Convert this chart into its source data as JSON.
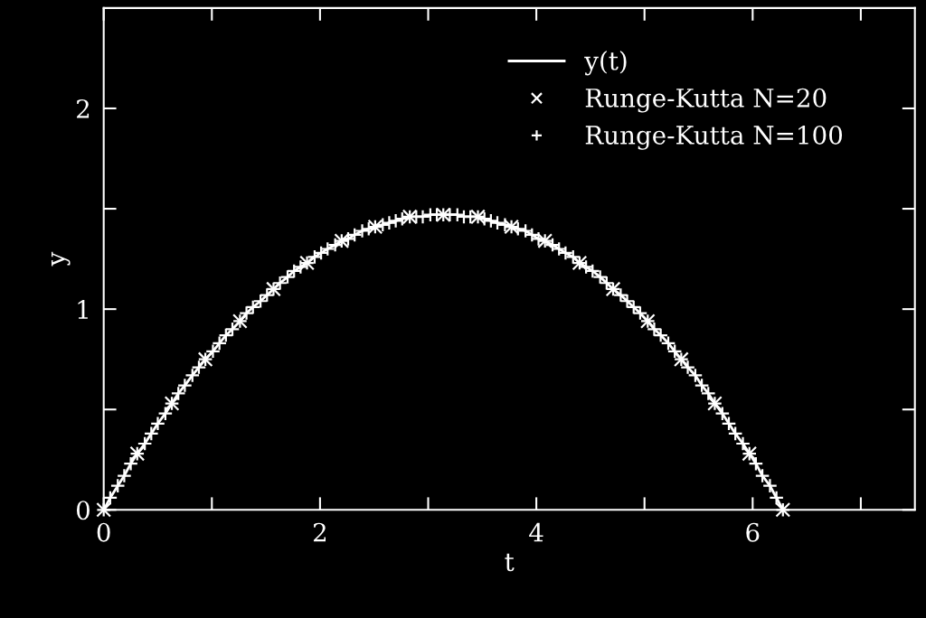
{
  "chart_data": {
    "type": "line",
    "xlabel": "t",
    "ylabel": "y",
    "xlim": [
      0,
      7.5
    ],
    "ylim": [
      0,
      2.5
    ],
    "xticks": [
      0,
      {
        "value": 1,
        "label": null
      },
      2,
      {
        "value": 3,
        "label": null
      },
      4,
      {
        "value": 5,
        "label": null
      },
      6,
      {
        "value": 7,
        "label": null
      }
    ],
    "yticks": [
      0,
      {
        "value": 0.5,
        "label": null
      },
      1,
      {
        "value": 1.5,
        "label": null
      },
      2
    ],
    "grid": false,
    "legend": "top right",
    "series": [
      {
        "name": "y(t)",
        "color": "#ffffff",
        "marker": "none",
        "line_style": "solid",
        "x": [
          0,
          0.06,
          0.13,
          0.19,
          0.25,
          0.31,
          0.38,
          0.44,
          0.5,
          0.57,
          0.63,
          0.69,
          0.75,
          0.82,
          0.88,
          0.94,
          1.01,
          1.07,
          1.13,
          1.19,
          1.26,
          1.32,
          1.38,
          1.45,
          1.51,
          1.57,
          1.63,
          1.7,
          1.76,
          1.82,
          1.88,
          1.95,
          2.01,
          2.07,
          2.14,
          2.2,
          2.26,
          2.32,
          2.39,
          2.45,
          2.51,
          2.58,
          2.64,
          2.7,
          2.76,
          2.83,
          2.89,
          2.95,
          3.02,
          3.08,
          3.14,
          3.2,
          3.27,
          3.33,
          3.39,
          3.46,
          3.52,
          3.58,
          3.64,
          3.71,
          3.77,
          3.83,
          3.9,
          3.96,
          4.02,
          4.08,
          4.15,
          4.21,
          4.27,
          4.34,
          4.4,
          4.46,
          4.52,
          4.59,
          4.65,
          4.71,
          4.78,
          4.84,
          4.9,
          4.96,
          5.03,
          5.09,
          5.15,
          5.22,
          5.28,
          5.34,
          5.4,
          5.47,
          5.53,
          5.59,
          5.65,
          5.72,
          5.78,
          5.84,
          5.91,
          5.97,
          6.03,
          6.09,
          6.16,
          6.22,
          6.28
        ],
        "values": [
          0,
          0.06,
          0.12,
          0.17,
          0.23,
          0.28,
          0.33,
          0.38,
          0.43,
          0.48,
          0.53,
          0.58,
          0.62,
          0.67,
          0.71,
          0.75,
          0.79,
          0.83,
          0.87,
          0.9,
          0.94,
          0.98,
          1.01,
          1.04,
          1.07,
          1.1,
          1.13,
          1.16,
          1.19,
          1.21,
          1.23,
          1.26,
          1.28,
          1.3,
          1.32,
          1.34,
          1.35,
          1.37,
          1.39,
          1.4,
          1.41,
          1.42,
          1.43,
          1.44,
          1.45,
          1.46,
          1.46,
          1.46,
          1.47,
          1.47,
          1.47,
          1.47,
          1.47,
          1.46,
          1.46,
          1.46,
          1.45,
          1.44,
          1.43,
          1.42,
          1.41,
          1.4,
          1.39,
          1.37,
          1.35,
          1.34,
          1.32,
          1.3,
          1.28,
          1.26,
          1.23,
          1.21,
          1.19,
          1.16,
          1.13,
          1.1,
          1.07,
          1.04,
          1.01,
          0.98,
          0.94,
          0.9,
          0.87,
          0.83,
          0.79,
          0.75,
          0.71,
          0.67,
          0.62,
          0.58,
          0.53,
          0.48,
          0.43,
          0.38,
          0.33,
          0.28,
          0.23,
          0.17,
          0.12,
          0.06,
          0
        ]
      },
      {
        "name": "Runge-Kutta N=20",
        "type": "scatter",
        "color": "#ffffff",
        "marker": "cross",
        "x": [
          0,
          0.31,
          0.63,
          0.94,
          1.26,
          1.57,
          1.88,
          2.2,
          2.51,
          2.83,
          3.14,
          3.46,
          3.77,
          4.08,
          4.4,
          4.71,
          5.03,
          5.34,
          5.65,
          5.97,
          6.28
        ],
        "values": [
          0,
          0.28,
          0.53,
          0.75,
          0.94,
          1.1,
          1.23,
          1.34,
          1.41,
          1.46,
          1.47,
          1.46,
          1.41,
          1.34,
          1.23,
          1.1,
          0.94,
          0.75,
          0.53,
          0.28,
          0
        ]
      },
      {
        "name": "Runge-Kutta N=100",
        "type": "scatter",
        "color": "#ffffff",
        "marker": "plus",
        "x": [
          0,
          0.06,
          0.13,
          0.19,
          0.25,
          0.31,
          0.38,
          0.44,
          0.5,
          0.57,
          0.63,
          0.69,
          0.75,
          0.82,
          0.88,
          0.94,
          1.01,
          1.07,
          1.13,
          1.19,
          1.26,
          1.32,
          1.38,
          1.45,
          1.51,
          1.57,
          1.63,
          1.7,
          1.76,
          1.82,
          1.88,
          1.95,
          2.01,
          2.07,
          2.14,
          2.2,
          2.26,
          2.32,
          2.39,
          2.45,
          2.51,
          2.58,
          2.64,
          2.7,
          2.76,
          2.83,
          2.89,
          2.95,
          3.02,
          3.08,
          3.14,
          3.2,
          3.27,
          3.33,
          3.39,
          3.46,
          3.52,
          3.58,
          3.64,
          3.71,
          3.77,
          3.83,
          3.9,
          3.96,
          4.02,
          4.08,
          4.15,
          4.21,
          4.27,
          4.34,
          4.4,
          4.46,
          4.52,
          4.59,
          4.65,
          4.71,
          4.78,
          4.84,
          4.9,
          4.96,
          5.03,
          5.09,
          5.15,
          5.22,
          5.28,
          5.34,
          5.4,
          5.47,
          5.53,
          5.59,
          5.65,
          5.72,
          5.78,
          5.84,
          5.91,
          5.97,
          6.03,
          6.09,
          6.16,
          6.22,
          6.28
        ],
        "values": [
          0,
          0.06,
          0.12,
          0.17,
          0.23,
          0.28,
          0.33,
          0.38,
          0.43,
          0.48,
          0.53,
          0.58,
          0.62,
          0.67,
          0.71,
          0.75,
          0.79,
          0.83,
          0.87,
          0.9,
          0.94,
          0.98,
          1.01,
          1.04,
          1.07,
          1.1,
          1.13,
          1.16,
          1.19,
          1.21,
          1.23,
          1.26,
          1.28,
          1.3,
          1.32,
          1.34,
          1.35,
          1.37,
          1.39,
          1.4,
          1.41,
          1.42,
          1.43,
          1.44,
          1.45,
          1.46,
          1.46,
          1.46,
          1.47,
          1.47,
          1.47,
          1.47,
          1.47,
          1.46,
          1.46,
          1.46,
          1.45,
          1.44,
          1.43,
          1.42,
          1.41,
          1.4,
          1.39,
          1.37,
          1.35,
          1.34,
          1.32,
          1.3,
          1.28,
          1.26,
          1.23,
          1.21,
          1.19,
          1.16,
          1.13,
          1.1,
          1.07,
          1.04,
          1.01,
          0.98,
          0.94,
          0.9,
          0.87,
          0.83,
          0.79,
          0.75,
          0.71,
          0.67,
          0.62,
          0.58,
          0.53,
          0.48,
          0.43,
          0.38,
          0.33,
          0.28,
          0.23,
          0.17,
          0.12,
          0.06,
          0
        ]
      }
    ]
  }
}
